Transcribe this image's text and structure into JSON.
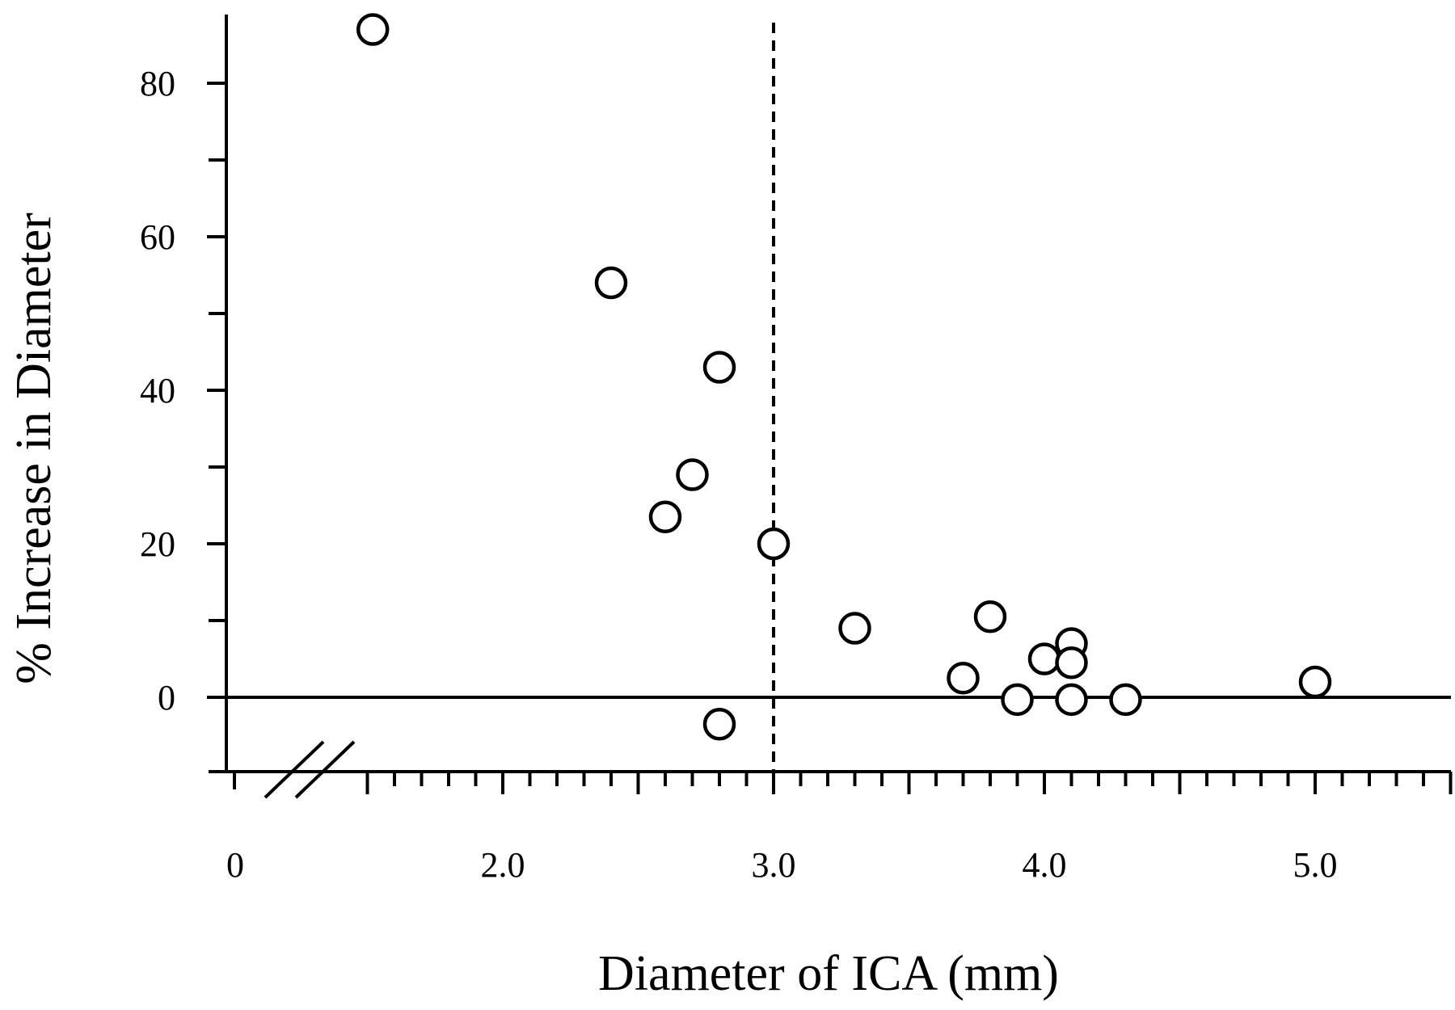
{
  "chart_data": {
    "type": "scatter",
    "title": "",
    "xlabel": "Diameter of ICA (mm)",
    "ylabel": "% Increase in Diameter",
    "x_axis_break": true,
    "xlim": [
      1.0,
      5.5
    ],
    "ylim": [
      -10,
      90
    ],
    "x_ticks": [
      {
        "value": 0,
        "label": "0",
        "at": 0.9
      },
      {
        "value": 2.0,
        "label": "2.0",
        "at": 2.0
      },
      {
        "value": 3.0,
        "label": "3.0",
        "at": 3.0
      },
      {
        "value": 4.0,
        "label": "4.0",
        "at": 4.0
      },
      {
        "value": 5.0,
        "label": "5.0",
        "at": 5.0
      }
    ],
    "y_ticks": [
      {
        "value": 0,
        "label": "0"
      },
      {
        "value": 20,
        "label": "20"
      },
      {
        "value": 40,
        "label": "40"
      },
      {
        "value": 60,
        "label": "60"
      },
      {
        "value": 80,
        "label": "80"
      }
    ],
    "reference_lines": [
      {
        "orientation": "vertical",
        "value": 3.0,
        "style": "dashed"
      },
      {
        "orientation": "horizontal",
        "value": 0,
        "style": "solid"
      }
    ],
    "grid": false,
    "legend": "none",
    "marker": "open-circle",
    "points": [
      {
        "x": 1.52,
        "y": 87
      },
      {
        "x": 2.4,
        "y": 54
      },
      {
        "x": 2.8,
        "y": 43
      },
      {
        "x": 2.7,
        "y": 29
      },
      {
        "x": 2.6,
        "y": 23.5
      },
      {
        "x": 3.0,
        "y": 20
      },
      {
        "x": 3.3,
        "y": 9
      },
      {
        "x": 3.8,
        "y": 10.5
      },
      {
        "x": 3.7,
        "y": 2.5
      },
      {
        "x": 4.0,
        "y": 5
      },
      {
        "x": 4.1,
        "y": 7
      },
      {
        "x": 4.1,
        "y": 4.5
      },
      {
        "x": 3.9,
        "y": -0.3
      },
      {
        "x": 4.1,
        "y": -0.3
      },
      {
        "x": 4.3,
        "y": -0.3
      },
      {
        "x": 5.0,
        "y": 2
      },
      {
        "x": 2.8,
        "y": -3.5
      }
    ]
  }
}
